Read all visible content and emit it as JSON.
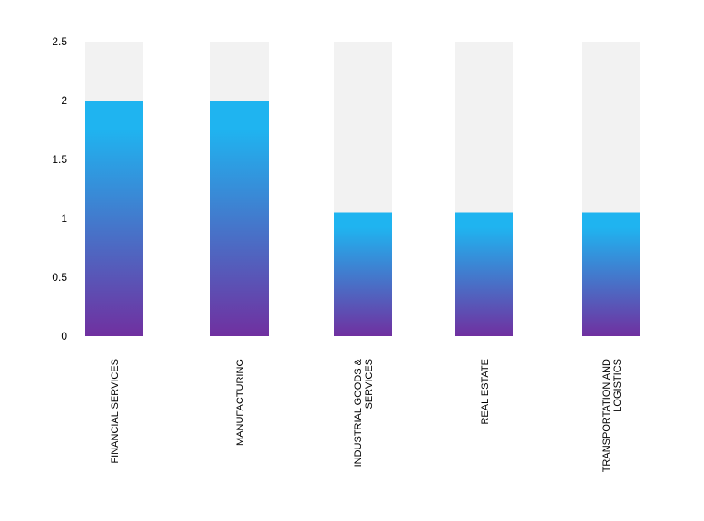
{
  "chart_data": {
    "type": "bar",
    "categories": [
      [
        "FINANCIAL SERVICES"
      ],
      [
        "MANUFACTURING"
      ],
      [
        "INDUSTRIAL GOODS &",
        "SERVICES"
      ],
      [
        "REAL ESTATE"
      ],
      [
        "TRANSPORTATION AND",
        "LOGISTICS"
      ]
    ],
    "values": [
      2,
      2,
      1.05,
      1.05,
      1.05
    ],
    "ylim": [
      0,
      2.5
    ],
    "yticks": [
      "0",
      "0.5",
      "1",
      "1.5",
      "2",
      "2.5"
    ],
    "ytick_values": [
      0,
      0.5,
      1,
      1.5,
      2,
      2.5
    ],
    "grid": false,
    "legend": "none",
    "colors": {
      "background_track": "#f2f2f2",
      "gradient_top": "#1fb4f0",
      "gradient_bottom": "#7030a0"
    }
  }
}
